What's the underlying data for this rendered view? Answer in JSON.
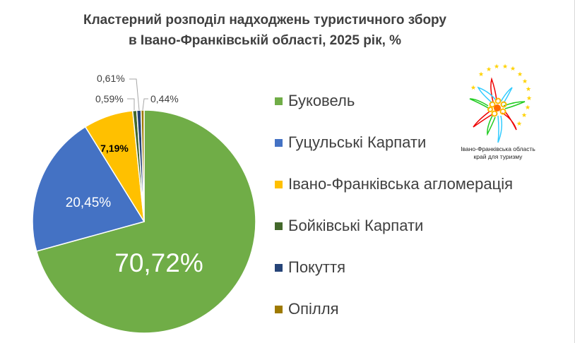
{
  "chart_data": {
    "type": "pie",
    "title": [
      "Кластерний розподіл надходжень туристичного збору",
      "в Івано-Франківській області, 2025 рік, %"
    ],
    "categories": [
      "Буковель",
      "Гуцульські Карпати",
      "Івано-Франківська агломерація",
      "Бойківські Карпати",
      "Покуття",
      "Опілля"
    ],
    "values": [
      70.72,
      20.45,
      7.19,
      0.59,
      0.61,
      0.44
    ],
    "labels": [
      "70,72%",
      "20,45%",
      "7,19%",
      "0,59%",
      "0,61%",
      "0,44%"
    ],
    "colors": [
      "#70AD47",
      "#4472C4",
      "#FFC000",
      "#43682B",
      "#264478",
      "#9E7A00"
    ],
    "legend_position": "right"
  },
  "logo": {
    "line1": "Івано-Франківська область",
    "line2": "край для туризму"
  }
}
